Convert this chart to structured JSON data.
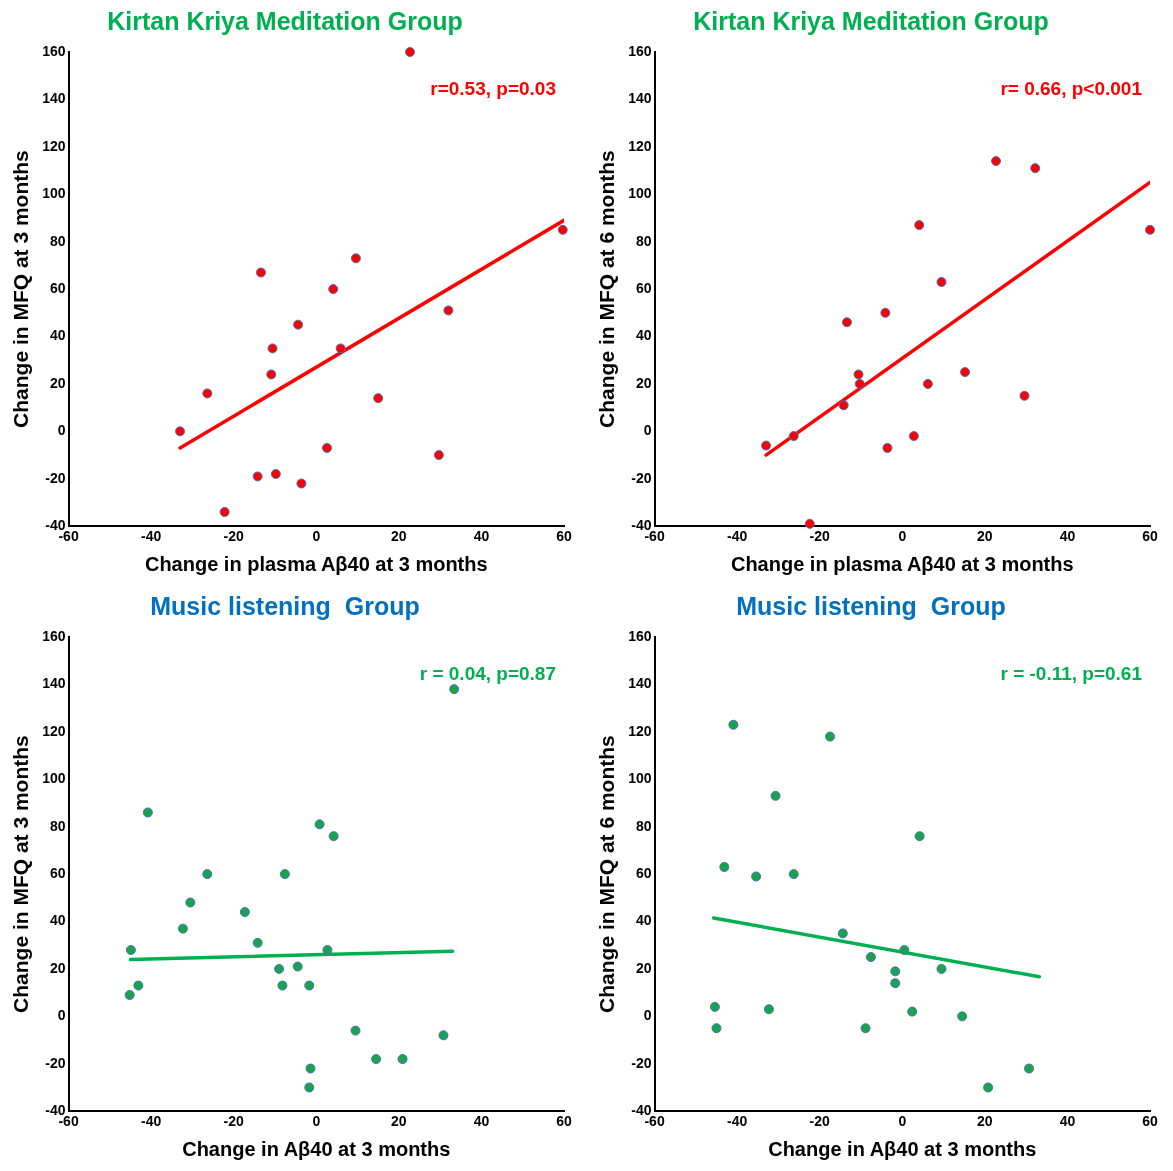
{
  "chart_data": [
    {
      "type": "scatter",
      "title": "Kirtan Kriya Meditation Group",
      "xlabel": "Change in plasma Aβ40 at 3 months",
      "ylabel": "Change in MFQ at 3 months",
      "annotations": [
        "r=0.53, p=0.03"
      ],
      "xlim": [
        -60,
        60
      ],
      "xticks": [
        -60,
        -40,
        -20,
        0,
        20,
        40,
        60
      ],
      "ylim": [
        -40,
        160
      ],
      "yticks": [
        -40,
        -20,
        0,
        20,
        40,
        60,
        80,
        100,
        120,
        140,
        160
      ],
      "grid": false,
      "legend": false,
      "series": [
        {
          "color": "#ff0000",
          "marker": "circle",
          "x": [
            -33,
            -26.4,
            -22.2,
            -13.4,
            -14.2,
            -10.6,
            -10.9,
            -9.8,
            -4.4,
            -3.6,
            2.6,
            4.1,
            5.9,
            9.6,
            15,
            22.7,
            29.7,
            32,
            59.7
          ],
          "values": [
            0,
            16,
            -34,
            67,
            -19,
            35,
            24,
            -18,
            45,
            -22,
            -7,
            60,
            35,
            73,
            14,
            160,
            -10,
            51,
            85
          ]
        },
        {
          "type": "line",
          "marker": "none",
          "color": "#ff0000",
          "x": [
            -33,
            60
          ],
          "values": [
            -7,
            89
          ]
        }
      ]
    },
    {
      "type": "scatter",
      "title": "Kirtan Kriya Meditation Group",
      "xlabel": "Change in plasma Aβ40 at 3 months",
      "ylabel": "Change in MFQ at 6 months",
      "annotations": [
        "r= 0.66, p<0.001"
      ],
      "xlim": [
        -60,
        60
      ],
      "xticks": [
        -60,
        -40,
        -20,
        0,
        20,
        40,
        60
      ],
      "ylim": [
        -40,
        160
      ],
      "yticks": [
        -40,
        -20,
        0,
        20,
        40,
        60,
        80,
        100,
        120,
        140,
        160
      ],
      "grid": false,
      "legend": false,
      "series": [
        {
          "color": "#ff0000",
          "marker": "circle",
          "x": [
            -33,
            -26.3,
            -22.4,
            -14.2,
            -13.4,
            -10.6,
            -10.3,
            -4.1,
            -3.6,
            4.1,
            2.8,
            6.2,
            9.5,
            15.2,
            29.6,
            22.7,
            32.2,
            60
          ],
          "values": [
            -6,
            -2,
            -39,
            11,
            46,
            24,
            20,
            50,
            -7,
            87,
            -2,
            20,
            63,
            25,
            15,
            114,
            111,
            85
          ]
        },
        {
          "type": "line",
          "marker": "none",
          "color": "#ff0000",
          "x": [
            -33,
            60
          ],
          "values": [
            -10,
            105
          ]
        }
      ]
    },
    {
      "type": "scatter",
      "title": "Music listening  Group",
      "xlabel": "Change in Aβ40 at 3 months",
      "ylabel": "Change in MFQ at 3 months",
      "annotations": [
        "r = 0.04, p=0.87"
      ],
      "xlim": [
        -60,
        60
      ],
      "xticks": [
        -60,
        -40,
        -20,
        0,
        20,
        40,
        60
      ],
      "ylim": [
        -40,
        160
      ],
      "yticks": [
        -40,
        -20,
        0,
        20,
        40,
        60,
        80,
        100,
        120,
        140,
        160
      ],
      "grid": false,
      "legend": false,
      "series": [
        {
          "color": "#1aa34a",
          "marker": "circle",
          "x": [
            -45.2,
            -43.1,
            -44.9,
            -40.8,
            -32.3,
            -30.5,
            -26.4,
            -17.3,
            -14.2,
            -9,
            -8.2,
            -7.6,
            -4.5,
            -1.7,
            -1.4,
            -1.7,
            0.8,
            4.2,
            2.7,
            9.5,
            14.5,
            20.9,
            30.8,
            33.4
          ],
          "values": [
            9,
            13,
            28,
            86,
            37,
            48,
            60,
            44,
            31,
            20,
            13,
            60,
            21,
            13,
            -22,
            -30,
            81,
            76,
            28,
            -6,
            -18,
            -18,
            -8,
            138
          ]
        },
        {
          "type": "line",
          "marker": "none",
          "color": "#00b050",
          "x": [
            -45,
            33
          ],
          "values": [
            24,
            27.5
          ]
        }
      ]
    },
    {
      "type": "scatter",
      "title": "Music listening  Group",
      "xlabel": "Change in Aβ40 at 3 months",
      "ylabel": "Change in MFQ at 6 months",
      "annotations": [
        "r = -0.11, p=0.61"
      ],
      "xlim": [
        -60,
        60
      ],
      "xticks": [
        -60,
        -40,
        -20,
        0,
        20,
        40,
        60
      ],
      "ylim": [
        -40,
        160
      ],
      "yticks": [
        -40,
        -20,
        0,
        20,
        40,
        60,
        80,
        100,
        120,
        140,
        160
      ],
      "grid": false,
      "legend": false,
      "series": [
        {
          "color": "#1aa34a",
          "marker": "circle",
          "x": [
            -45.4,
            -45,
            -43.1,
            -40.9,
            -35.4,
            -32.3,
            -30.7,
            -26.3,
            -17.5,
            -14.4,
            -7.6,
            -8.9,
            -1.7,
            -1.7,
            0.5,
            2.4,
            4.2,
            9.5,
            14.5,
            20.8,
            30.7
          ],
          "values": [
            4,
            -5,
            63,
            123,
            59,
            3,
            93,
            60,
            118,
            35,
            25,
            -5,
            19,
            14,
            28,
            2,
            76,
            20,
            0,
            -30,
            -22
          ]
        },
        {
          "type": "line",
          "marker": "none",
          "color": "#00b050",
          "x": [
            -45.7,
            33.2
          ],
          "values": [
            41.5,
            16.7
          ]
        }
      ]
    }
  ]
}
